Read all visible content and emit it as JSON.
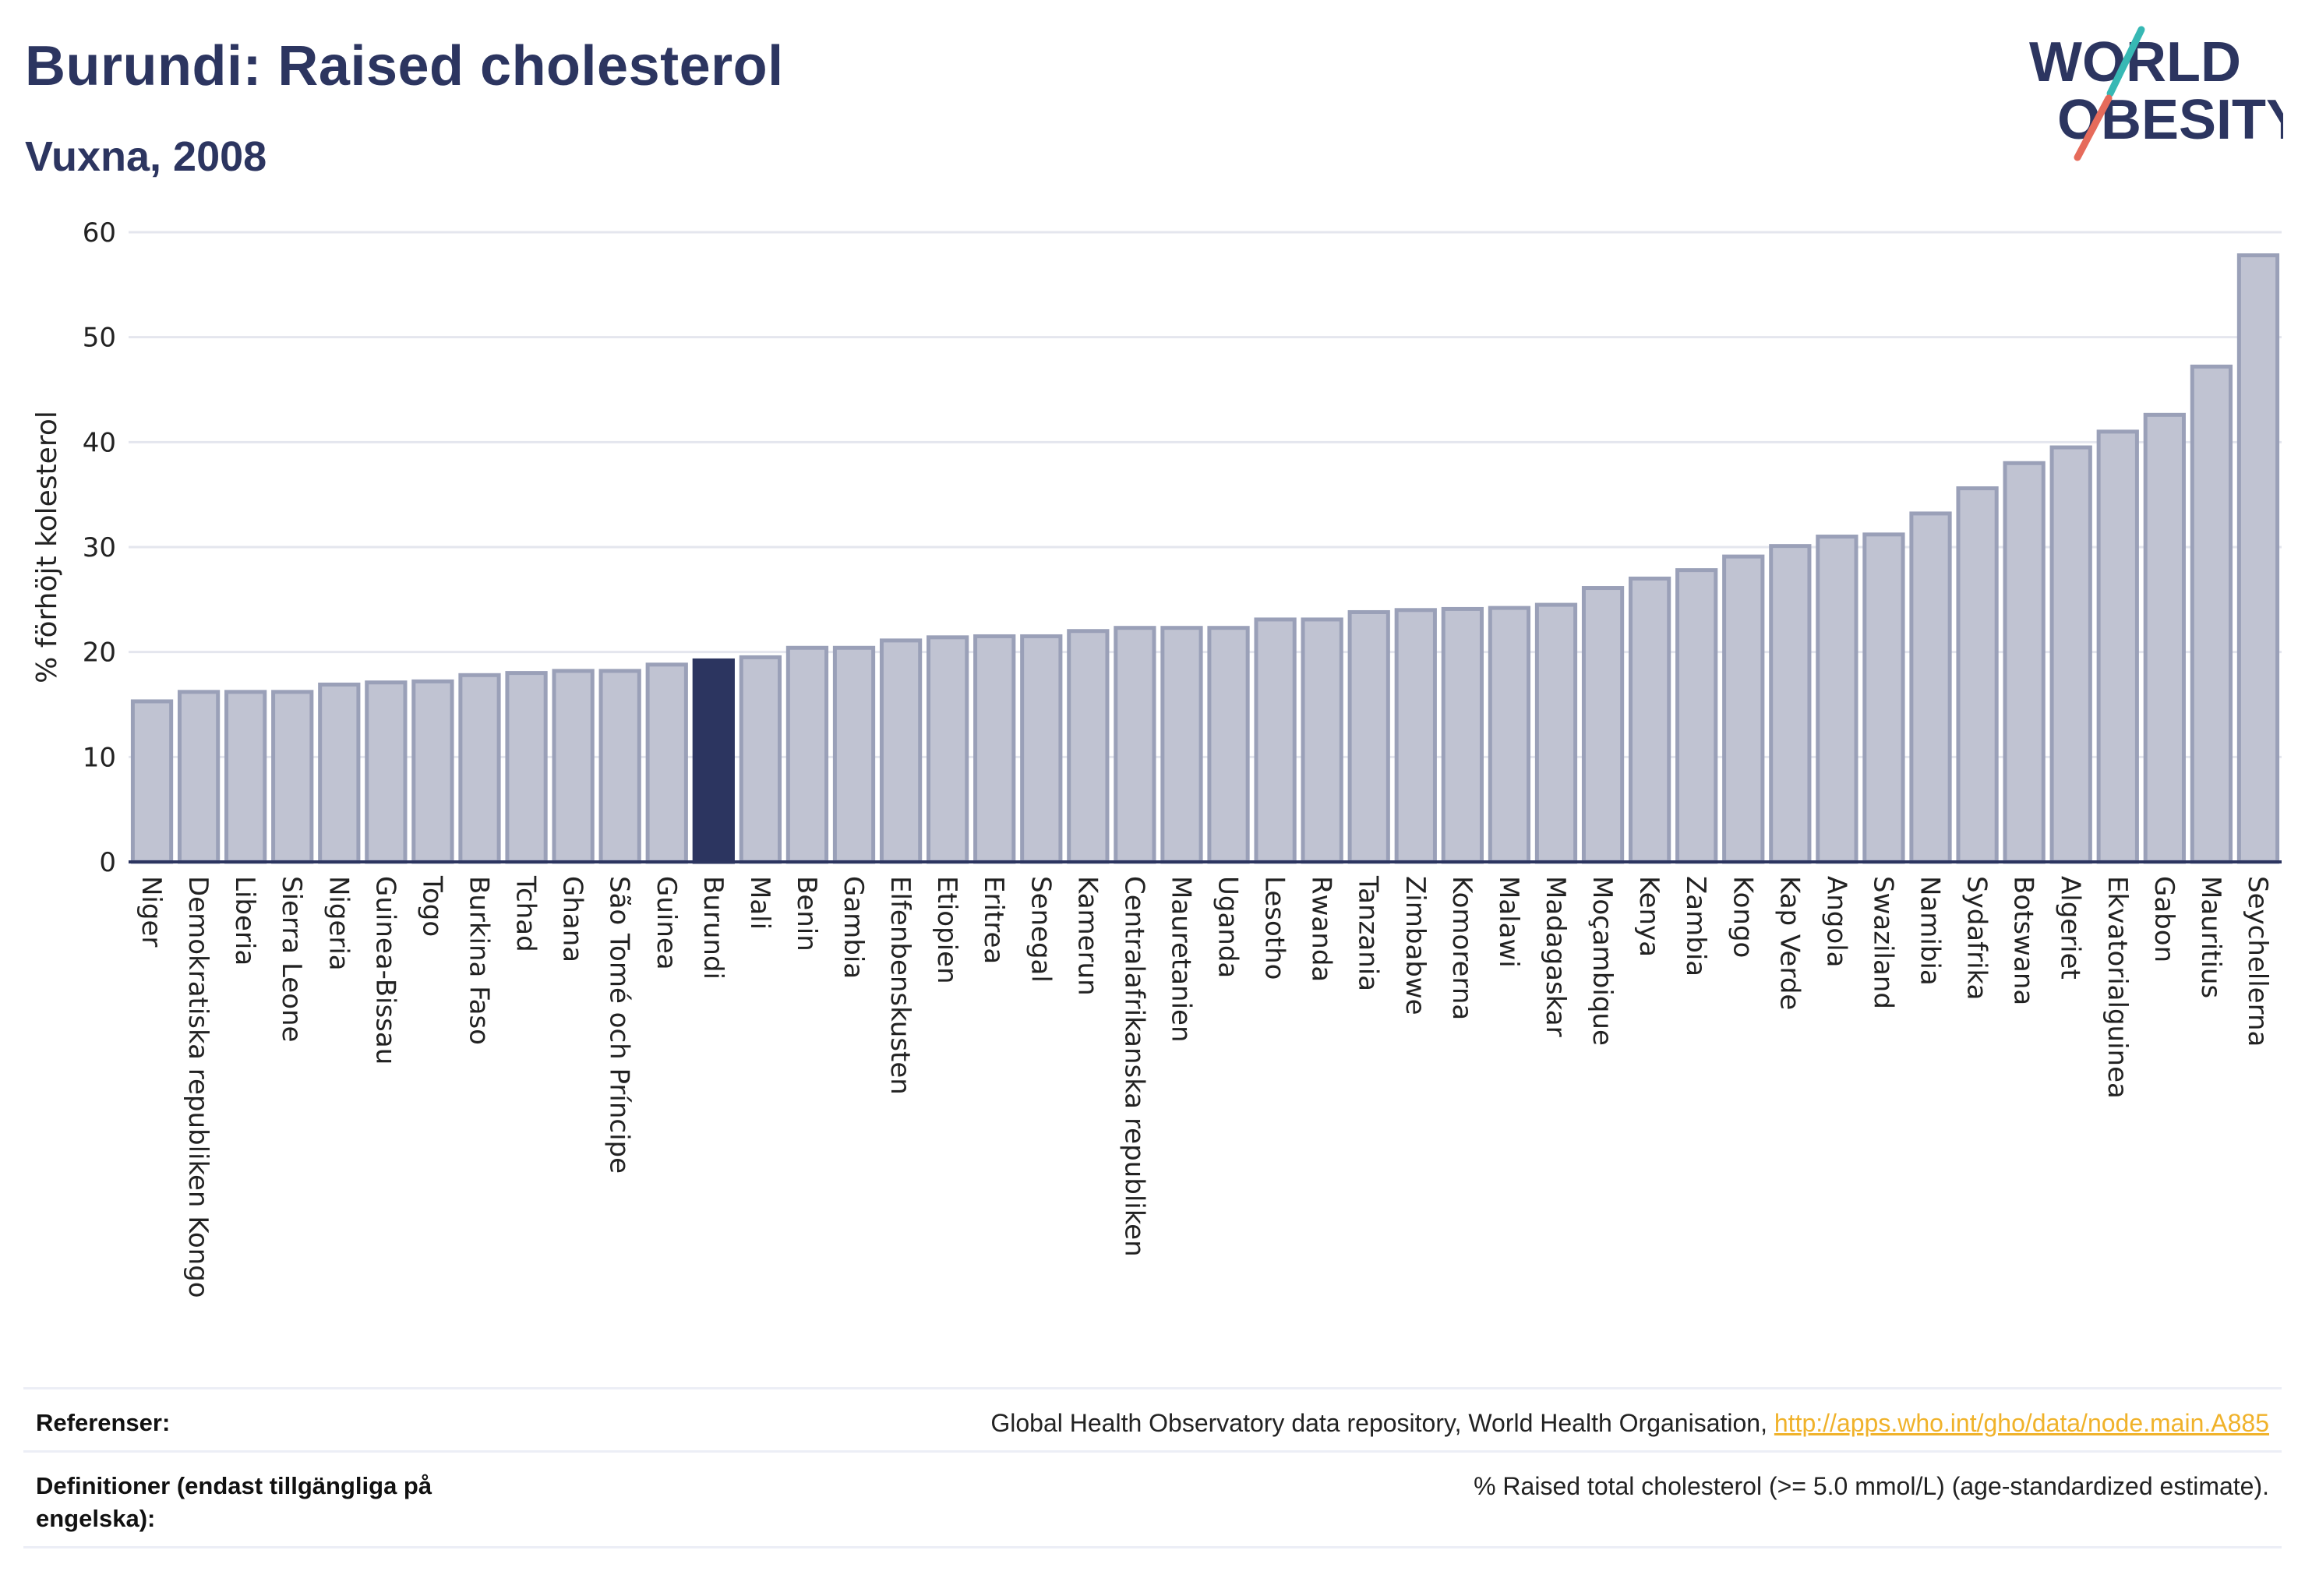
{
  "header": {
    "title": "Burundi: Raised cholesterol",
    "subtitle": "Vuxna, 2008"
  },
  "logo": {
    "line1": "WORLD",
    "line2": "OBESITY",
    "colors": {
      "text": "#2c3560",
      "teal": "#37b8b4",
      "coral": "#e66b5b"
    }
  },
  "chart_data": {
    "type": "bar",
    "title": "Burundi: Raised cholesterol",
    "subtitle": "Vuxna, 2008",
    "xlabel": "",
    "ylabel": "% förhöjt kolesterol",
    "ylim": [
      0,
      60
    ],
    "yticks": [
      0,
      10,
      20,
      30,
      40,
      50,
      60
    ],
    "grid": true,
    "highlight": "Burundi",
    "colors": {
      "bar": "#c0c3d2",
      "bar_edge": "#9aa0b8",
      "highlight": "#2c3560"
    },
    "categories": [
      "Niger",
      "Demokratiska republiken Kongo",
      "Liberia",
      "Sierra Leone",
      "Nigeria",
      "Guinea-Bissau",
      "Togo",
      "Burkina Faso",
      "Tchad",
      "Ghana",
      "São Tomé och Príncipe",
      "Guinea",
      "Burundi",
      "Mali",
      "Benin",
      "Gambia",
      "Elfenbenskusten",
      "Etiopien",
      "Eritrea",
      "Senegal",
      "Kamerun",
      "Centralafrikanska republiken",
      "Mauretanien",
      "Uganda",
      "Lesotho",
      "Rwanda",
      "Tanzania",
      "Zimbabwe",
      "Komorerna",
      "Malawi",
      "Madagaskar",
      "Moçambique",
      "Kenya",
      "Zambia",
      "Kongo",
      "Kap Verde",
      "Angola",
      "Swaziland",
      "Namibia",
      "Sydafrika",
      "Botswana",
      "Algeriet",
      "Ekvatorialguinea",
      "Gabon",
      "Mauritius",
      "Seychellerna"
    ],
    "values": [
      15.3,
      16.2,
      16.2,
      16.2,
      16.9,
      17.1,
      17.2,
      17.8,
      18.0,
      18.2,
      18.2,
      18.8,
      19.2,
      19.5,
      20.4,
      20.4,
      21.1,
      21.4,
      21.5,
      21.5,
      22.0,
      22.3,
      22.3,
      22.3,
      23.1,
      23.1,
      23.8,
      24.0,
      24.1,
      24.2,
      24.5,
      26.1,
      27.0,
      27.8,
      29.1,
      30.1,
      31.0,
      31.2,
      33.2,
      35.6,
      38.0,
      39.5,
      41.0,
      42.6,
      47.2,
      57.8
    ]
  },
  "references": {
    "refs_label": "Referenser:",
    "refs_text": "Global Health Observatory data repository, World Health Organisation, ",
    "refs_link": "http://apps.who.int/gho/data/node.main.A885",
    "defs_label": "Definitioner (endast tillgängliga på engelska):",
    "defs_text": "% Raised total cholesterol (>= 5.0 mmol/L) (age-standardized estimate)."
  }
}
